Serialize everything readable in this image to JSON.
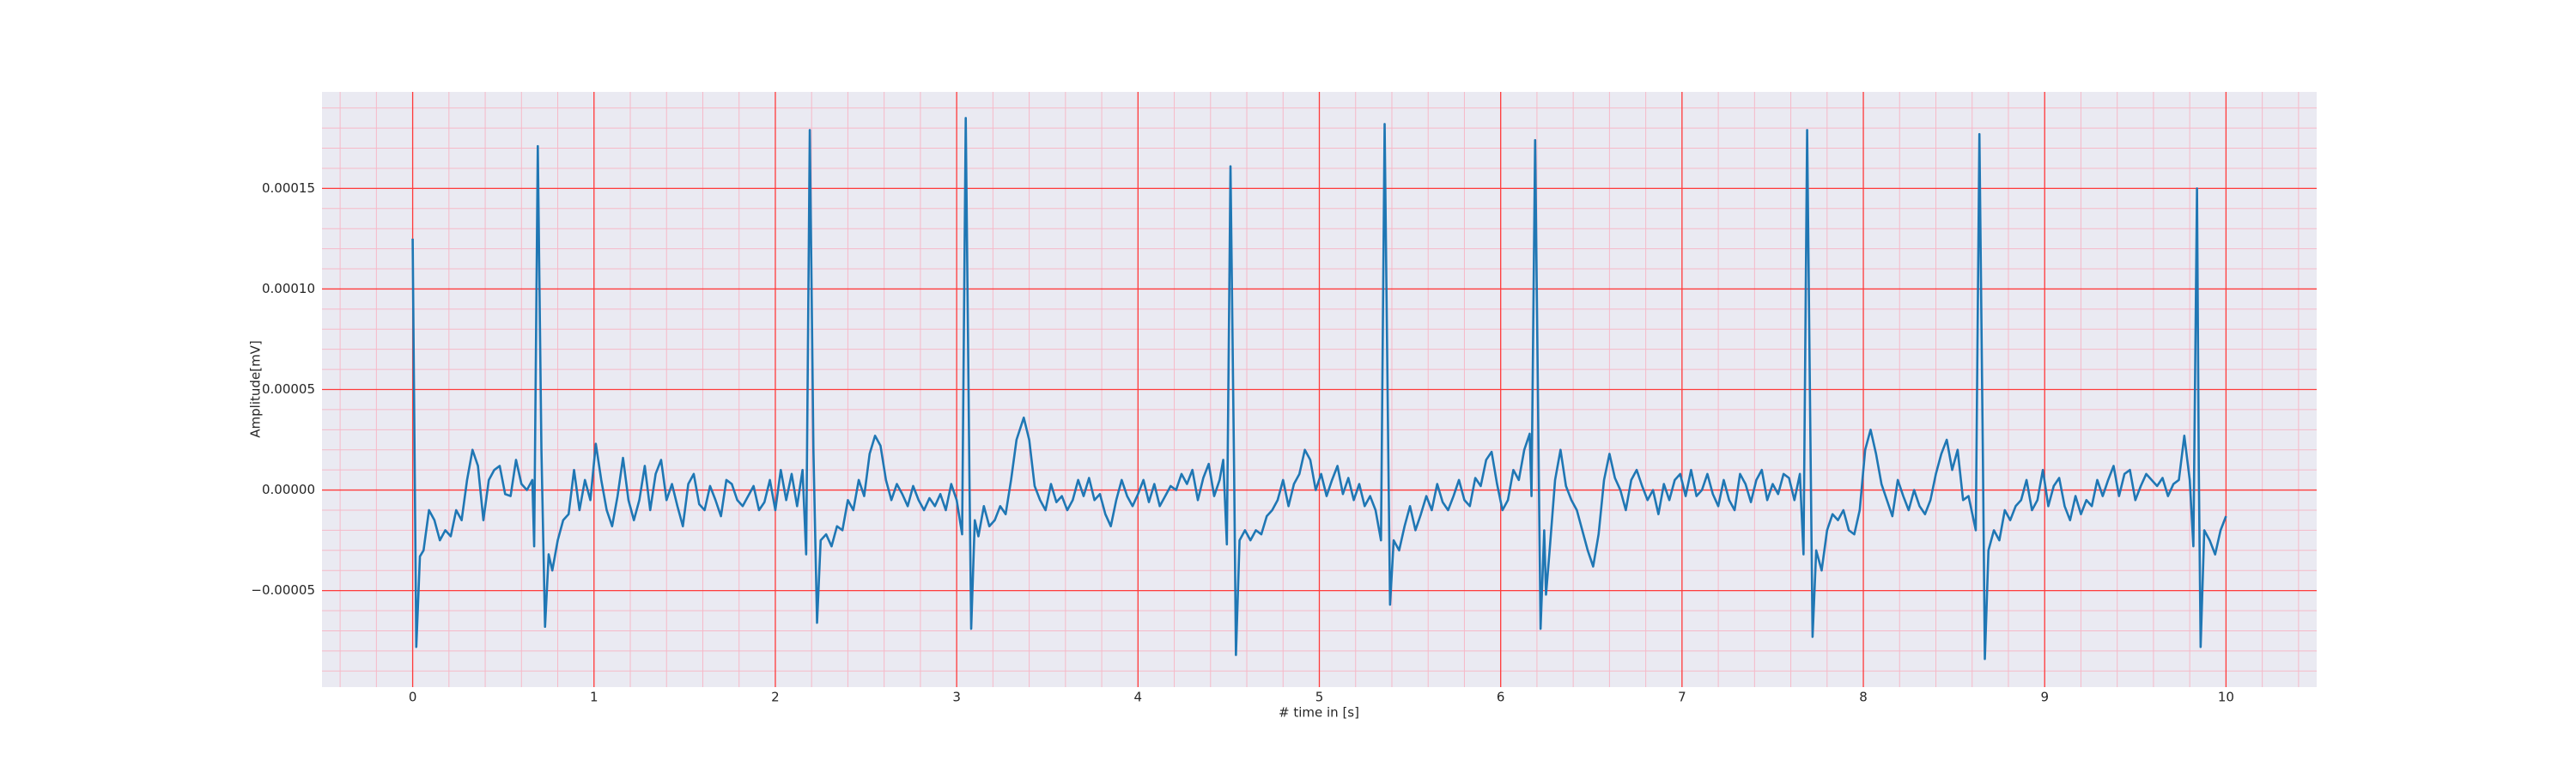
{
  "chart_data": {
    "type": "line",
    "xlabel": "# time in [s]",
    "ylabel": "Amplitude[mV]",
    "color": "#1f77b4",
    "background": "#eaeaf2",
    "grid": true,
    "grid_color": "#ff3b3b",
    "minor_grid_color": "#f6b9c8",
    "minor_grid_divisions": 5,
    "xlim": [
      -0.5,
      10.5
    ],
    "xticks": [
      0,
      1,
      2,
      3,
      4,
      5,
      6,
      7,
      8,
      9,
      10
    ],
    "ylim": [
      -9.8e-05,
      0.000198
    ],
    "yticks": [
      {
        "value": -5e-05,
        "label": "−0.00005"
      },
      {
        "value": 0,
        "label": "0.00000"
      },
      {
        "value": 5e-05,
        "label": "0.00005"
      },
      {
        "value": 0.0001,
        "label": "0.00010"
      },
      {
        "value": 0.00015,
        "label": "0.00015"
      }
    ],
    "x": [
      0,
      0.02,
      0.04,
      0.06,
      0.09,
      0.12,
      0.15,
      0.18,
      0.21,
      0.24,
      0.27,
      0.3,
      0.33,
      0.36,
      0.39,
      0.42,
      0.45,
      0.48,
      0.51,
      0.54,
      0.57,
      0.6,
      0.63,
      0.66,
      0.67,
      0.69,
      0.71,
      0.73,
      0.75,
      0.77,
      0.8,
      0.83,
      0.86,
      0.89,
      0.92,
      0.95,
      0.98,
      1.01,
      1.04,
      1.07,
      1.1,
      1.13,
      1.16,
      1.19,
      1.22,
      1.25,
      1.28,
      1.31,
      1.34,
      1.37,
      1.4,
      1.43,
      1.46,
      1.49,
      1.52,
      1.55,
      1.58,
      1.61,
      1.64,
      1.67,
      1.7,
      1.73,
      1.76,
      1.79,
      1.82,
      1.85,
      1.88,
      1.91,
      1.94,
      1.97,
      2.0,
      2.03,
      2.06,
      2.09,
      2.12,
      2.15,
      2.17,
      2.19,
      2.21,
      2.23,
      2.25,
      2.28,
      2.31,
      2.34,
      2.37,
      2.4,
      2.43,
      2.46,
      2.49,
      2.52,
      2.55,
      2.58,
      2.61,
      2.64,
      2.67,
      2.7,
      2.73,
      2.76,
      2.79,
      2.82,
      2.85,
      2.88,
      2.91,
      2.94,
      2.97,
      3.0,
      3.03,
      3.05,
      3.07,
      3.08,
      3.1,
      3.12,
      3.15,
      3.18,
      3.21,
      3.24,
      3.27,
      3.3,
      3.33,
      3.37,
      3.4,
      3.43,
      3.46,
      3.49,
      3.52,
      3.55,
      3.58,
      3.61,
      3.64,
      3.67,
      3.7,
      3.73,
      3.76,
      3.79,
      3.82,
      3.85,
      3.88,
      3.91,
      3.94,
      3.97,
      4.0,
      4.03,
      4.06,
      4.09,
      4.12,
      4.15,
      4.18,
      4.21,
      4.24,
      4.27,
      4.3,
      4.33,
      4.36,
      4.39,
      4.42,
      4.45,
      4.47,
      4.49,
      4.51,
      4.53,
      4.54,
      4.56,
      4.59,
      4.62,
      4.65,
      4.68,
      4.71,
      4.74,
      4.77,
      4.8,
      4.83,
      4.86,
      4.89,
      4.92,
      4.95,
      4.98,
      5.01,
      5.04,
      5.07,
      5.1,
      5.13,
      5.16,
      5.19,
      5.22,
      5.25,
      5.28,
      5.31,
      5.34,
      5.36,
      5.38,
      5.39,
      5.41,
      5.44,
      5.47,
      5.5,
      5.53,
      5.56,
      5.59,
      5.62,
      5.65,
      5.68,
      5.71,
      5.74,
      5.77,
      5.8,
      5.83,
      5.86,
      5.89,
      5.92,
      5.95,
      5.98,
      6.01,
      6.04,
      6.07,
      6.1,
      6.13,
      6.16,
      6.17,
      6.19,
      6.21,
      6.22,
      6.24,
      6.25,
      6.27,
      6.3,
      6.33,
      6.36,
      6.39,
      6.42,
      6.45,
      6.48,
      6.51,
      6.54,
      6.57,
      6.6,
      6.63,
      6.66,
      6.69,
      6.72,
      6.75,
      6.78,
      6.81,
      6.84,
      6.87,
      6.9,
      6.93,
      6.96,
      6.99,
      7.02,
      7.05,
      7.08,
      7.11,
      7.14,
      7.17,
      7.2,
      7.23,
      7.26,
      7.29,
      7.32,
      7.35,
      7.38,
      7.41,
      7.44,
      7.47,
      7.5,
      7.53,
      7.56,
      7.59,
      7.62,
      7.65,
      7.67,
      7.69,
      7.71,
      7.72,
      7.74,
      7.77,
      7.8,
      7.83,
      7.86,
      7.89,
      7.92,
      7.95,
      7.98,
      8.01,
      8.04,
      8.07,
      8.1,
      8.13,
      8.16,
      8.19,
      8.22,
      8.25,
      8.28,
      8.31,
      8.34,
      8.37,
      8.4,
      8.43,
      8.46,
      8.49,
      8.52,
      8.55,
      8.58,
      8.62,
      8.64,
      8.66,
      8.67,
      8.69,
      8.72,
      8.75,
      8.78,
      8.81,
      8.84,
      8.87,
      8.9,
      8.93,
      8.96,
      8.99,
      9.02,
      9.05,
      9.08,
      9.11,
      9.14,
      9.17,
      9.2,
      9.23,
      9.26,
      9.29,
      9.32,
      9.35,
      9.38,
      9.41,
      9.44,
      9.47,
      9.5,
      9.53,
      9.56,
      9.59,
      9.62,
      9.65,
      9.68,
      9.71,
      9.74,
      9.77,
      9.8,
      9.82,
      9.84,
      9.85,
      9.86,
      9.88,
      9.91,
      9.94,
      9.97,
      10.0
    ],
    "values": [
      0.000125,
      -7.8e-05,
      -3.3e-05,
      -3e-05,
      -1e-05,
      -1.5e-05,
      -2.5e-05,
      -2e-05,
      -2.3e-05,
      -1e-05,
      -1.5e-05,
      5e-06,
      2e-05,
      1.2e-05,
      -1.5e-05,
      5e-06,
      1e-05,
      1.2e-05,
      -2e-06,
      -3e-06,
      1.5e-05,
      3e-06,
      0,
      5e-06,
      -2.8e-05,
      0.000171,
      2e-05,
      -6.8e-05,
      -3.2e-05,
      -4e-05,
      -2.5e-05,
      -1.5e-05,
      -1.2e-05,
      1e-05,
      -1e-05,
      5e-06,
      -5e-06,
      2.3e-05,
      5e-06,
      -1e-05,
      -1.8e-05,
      -3e-06,
      1.6e-05,
      -5e-06,
      -1.5e-05,
      -5e-06,
      1.2e-05,
      -1e-05,
      8e-06,
      1.5e-05,
      -5e-06,
      3e-06,
      -8e-06,
      -1.8e-05,
      3e-06,
      8e-06,
      -7e-06,
      -1e-05,
      2e-06,
      -5e-06,
      -1.3e-05,
      5e-06,
      3e-06,
      -5e-06,
      -8e-06,
      -3e-06,
      2e-06,
      -1e-05,
      -6e-06,
      5e-06,
      -1e-05,
      1e-05,
      -5e-06,
      8e-06,
      -8e-06,
      1e-05,
      -3.2e-05,
      0.000179,
      2e-05,
      -6.6e-05,
      -2.5e-05,
      -2.2e-05,
      -2.8e-05,
      -1.8e-05,
      -2e-05,
      -5e-06,
      -1e-05,
      5e-06,
      -3e-06,
      1.8e-05,
      2.7e-05,
      2.2e-05,
      5e-06,
      -5e-06,
      3e-06,
      -2e-06,
      -8e-06,
      2e-06,
      -5e-06,
      -1e-05,
      -4e-06,
      -8e-06,
      -2e-06,
      -1e-05,
      3e-06,
      -5e-06,
      -2.2e-05,
      0.000185,
      1e-05,
      -6.9e-05,
      -1.5e-05,
      -2.3e-05,
      -8e-06,
      -1.8e-05,
      -1.5e-05,
      -8e-06,
      -1.2e-05,
      5e-06,
      2.5e-05,
      3.6e-05,
      2.5e-05,
      2e-06,
      -5e-06,
      -1e-05,
      3e-06,
      -6e-06,
      -3e-06,
      -1e-05,
      -5e-06,
      5e-06,
      -3e-06,
      6e-06,
      -5e-06,
      -2e-06,
      -1.2e-05,
      -1.8e-05,
      -5e-06,
      5e-06,
      -3e-06,
      -8e-06,
      -2e-06,
      5e-06,
      -6e-06,
      3e-06,
      -8e-06,
      -3e-06,
      2e-06,
      0,
      8e-06,
      3e-06,
      1e-05,
      -5e-06,
      6e-06,
      1.3e-05,
      -3e-06,
      5e-06,
      1.5e-05,
      -2.7e-05,
      0.000161,
      1e-05,
      -8.2e-05,
      -2.5e-05,
      -2e-05,
      -2.5e-05,
      -2e-05,
      -2.2e-05,
      -1.3e-05,
      -1e-05,
      -5e-06,
      5e-06,
      -8e-06,
      3e-06,
      8e-06,
      2e-05,
      1.5e-05,
      0,
      8e-06,
      -3e-06,
      5e-06,
      1.2e-05,
      -2e-06,
      6e-06,
      -5e-06,
      3e-06,
      -8e-06,
      -3e-06,
      -1e-05,
      -2.5e-05,
      0.000182,
      2e-05,
      -5.7e-05,
      -2.5e-05,
      -3e-05,
      -1.8e-05,
      -8e-06,
      -2e-05,
      -1.2e-05,
      -3e-06,
      -1e-05,
      3e-06,
      -6e-06,
      -1e-05,
      -3e-06,
      5e-06,
      -5e-06,
      -8e-06,
      6e-06,
      2e-06,
      1.5e-05,
      1.9e-05,
      3e-06,
      -1e-05,
      -5e-06,
      1e-05,
      5e-06,
      2e-05,
      2.8e-05,
      -3e-06,
      0.000174,
      1e-05,
      -6.9e-05,
      -2e-05,
      -5.2e-05,
      -3e-05,
      5e-06,
      2e-05,
      2e-06,
      -5e-06,
      -1e-05,
      -2e-05,
      -3e-05,
      -3.8e-05,
      -2.2e-05,
      5e-06,
      1.8e-05,
      6e-06,
      0,
      -1e-05,
      5e-06,
      1e-05,
      2e-06,
      -5e-06,
      0,
      -1.2e-05,
      3e-06,
      -5e-06,
      5e-06,
      8e-06,
      -3e-06,
      1e-05,
      -3e-06,
      0,
      8e-06,
      -2e-06,
      -8e-06,
      5e-06,
      -5e-06,
      -1e-05,
      8e-06,
      3e-06,
      -6e-06,
      5e-06,
      1e-05,
      -5e-06,
      3e-06,
      -2e-06,
      8e-06,
      6e-06,
      -5e-06,
      8e-06,
      -3.2e-05,
      0.000179,
      1e-05,
      -7.3e-05,
      -3e-05,
      -4e-05,
      -2e-05,
      -1.2e-05,
      -1.5e-05,
      -1e-05,
      -2e-05,
      -2.2e-05,
      -1e-05,
      2e-05,
      3e-05,
      1.8e-05,
      3e-06,
      -5e-06,
      -1.3e-05,
      5e-06,
      -3e-06,
      -1e-05,
      0,
      -8e-06,
      -1.2e-05,
      -5e-06,
      8e-06,
      1.8e-05,
      2.5e-05,
      1e-05,
      2e-05,
      -5e-06,
      -3e-06,
      -2e-05,
      0.000177,
      1e-05,
      -8.4e-05,
      -3e-05,
      -2e-05,
      -2.5e-05,
      -1e-05,
      -1.5e-05,
      -8e-06,
      -5e-06,
      5e-06,
      -1e-05,
      -5e-06,
      1e-05,
      -8e-06,
      2e-06,
      6e-06,
      -8e-06,
      -1.5e-05,
      -3e-06,
      -1.2e-05,
      -5e-06,
      -8e-06,
      5e-06,
      -3e-06,
      5e-06,
      1.2e-05,
      -3e-06,
      8e-06,
      1e-05,
      -5e-06,
      2e-06,
      8e-06,
      5e-06,
      2e-06,
      6e-06,
      -3e-06,
      3e-06,
      5e-06,
      2.7e-05,
      5e-06,
      -2.8e-05,
      0.00015,
      1e-05,
      -7.8e-05,
      -2e-05,
      -2.5e-05,
      -3.2e-05,
      -2e-05,
      -1.3e-05
    ]
  }
}
